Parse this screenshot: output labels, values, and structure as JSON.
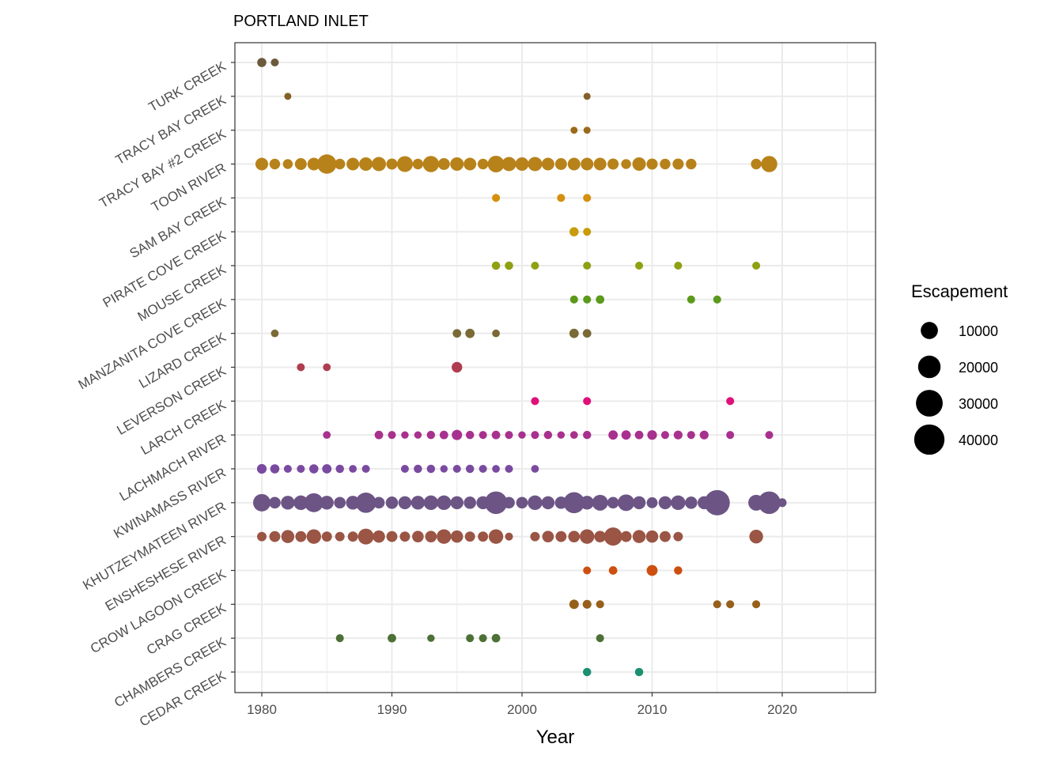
{
  "chart_data": {
    "type": "scatter",
    "title": "PORTLAND INLET",
    "xlabel": "Year",
    "ylabel": "",
    "xlim": [
      1978,
      2027
    ],
    "x_ticks": [
      1980,
      1990,
      2000,
      2010,
      2020
    ],
    "x_tick_labels": [
      "1980",
      "1990",
      "2000",
      "2010",
      "2020"
    ],
    "grid": true,
    "legend": {
      "title": "Escapement",
      "position": "right",
      "breaks": [
        10000,
        20000,
        30000,
        40000
      ],
      "labels": [
        "10000",
        "20000",
        "30000",
        "40000"
      ]
    },
    "series": [
      {
        "name": "TURK CREEK",
        "color": "#6b5a3c",
        "points": [
          [
            1980,
            2800
          ],
          [
            1981,
            1700
          ]
        ]
      },
      {
        "name": "TRACY BAY CREEK",
        "color": "#83602a",
        "points": [
          [
            1982,
            1000
          ],
          [
            2005,
            1000
          ]
        ]
      },
      {
        "name": "TRACY BAY #2 CREEK",
        "color": "#9c6a1c",
        "points": [
          [
            2004,
            1000
          ],
          [
            2005,
            1000
          ]
        ]
      },
      {
        "name": "TOON RIVER",
        "color": "#b8821a",
        "points": [
          [
            1980,
            6900
          ],
          [
            1981,
            4300
          ],
          [
            1982,
            3500
          ],
          [
            1983,
            5800
          ],
          [
            1984,
            6900
          ],
          [
            1985,
            18300
          ],
          [
            1986,
            4300
          ],
          [
            1987,
            6900
          ],
          [
            1988,
            8000
          ],
          [
            1989,
            9100
          ],
          [
            1990,
            4900
          ],
          [
            1991,
            11700
          ],
          [
            1992,
            4300
          ],
          [
            1993,
            12300
          ],
          [
            1994,
            5800
          ],
          [
            1995,
            8000
          ],
          [
            1996,
            6900
          ],
          [
            1997,
            4300
          ],
          [
            1998,
            13000
          ],
          [
            1999,
            9100
          ],
          [
            2000,
            8000
          ],
          [
            2001,
            9100
          ],
          [
            2002,
            6900
          ],
          [
            2003,
            5800
          ],
          [
            2004,
            6900
          ],
          [
            2005,
            6900
          ],
          [
            2006,
            6900
          ],
          [
            2007,
            4900
          ],
          [
            2008,
            3500
          ],
          [
            2009,
            8000
          ],
          [
            2010,
            4900
          ],
          [
            2011,
            4300
          ],
          [
            2012,
            4900
          ],
          [
            2013,
            4300
          ],
          [
            2018,
            4300
          ],
          [
            2019,
            12300
          ]
        ]
      },
      {
        "name": "SAM BAY CREEK",
        "color": "#d4900e",
        "points": [
          [
            1998,
            1700
          ],
          [
            2003,
            1700
          ],
          [
            2005,
            1700
          ]
        ]
      },
      {
        "name": "PIRATE COVE CREEK",
        "color": "#c89c0c",
        "points": [
          [
            2004,
            2800
          ],
          [
            2005,
            1700
          ]
        ]
      },
      {
        "name": "MOUSE CREEK",
        "color": "#8fa012",
        "points": [
          [
            1998,
            2000
          ],
          [
            1999,
            2000
          ],
          [
            2001,
            1700
          ],
          [
            2005,
            1700
          ],
          [
            2009,
            1700
          ],
          [
            2012,
            1700
          ],
          [
            2018,
            1700
          ]
        ]
      },
      {
        "name": "MANZANITA COVE CREEK",
        "color": "#5b9a1a",
        "points": [
          [
            2004,
            1700
          ],
          [
            2005,
            1700
          ],
          [
            2006,
            2200
          ],
          [
            2013,
            1700
          ],
          [
            2015,
            1700
          ]
        ]
      },
      {
        "name": "LIZARD CREEK",
        "color": "#7a6a36",
        "points": [
          [
            1981,
            1500
          ],
          [
            1995,
            2200
          ],
          [
            1996,
            3000
          ],
          [
            1998,
            1500
          ],
          [
            2004,
            3000
          ],
          [
            2005,
            2200
          ]
        ]
      },
      {
        "name": "LEVERSON CREEK",
        "color": "#b03c50",
        "points": [
          [
            1983,
            1700
          ],
          [
            1985,
            1500
          ],
          [
            1995,
            4300
          ]
        ]
      },
      {
        "name": "LARCH CREEK",
        "color": "#e0107a",
        "points": [
          [
            2001,
            1700
          ],
          [
            2005,
            1700
          ],
          [
            2016,
            1700
          ]
        ]
      },
      {
        "name": "LACHMACH RIVER",
        "color": "#a8308e",
        "points": [
          [
            1985,
            1500
          ],
          [
            1989,
            2200
          ],
          [
            1990,
            1700
          ],
          [
            1991,
            1300
          ],
          [
            1992,
            1300
          ],
          [
            1993,
            2000
          ],
          [
            1994,
            2200
          ],
          [
            1995,
            4000
          ],
          [
            1996,
            2000
          ],
          [
            1997,
            1700
          ],
          [
            1998,
            2200
          ],
          [
            1999,
            1700
          ],
          [
            2000,
            1300
          ],
          [
            2001,
            1700
          ],
          [
            2002,
            2000
          ],
          [
            2003,
            1300
          ],
          [
            2004,
            1500
          ],
          [
            2005,
            2000
          ],
          [
            2007,
            3000
          ],
          [
            2008,
            3000
          ],
          [
            2009,
            2200
          ],
          [
            2010,
            3300
          ],
          [
            2011,
            1700
          ],
          [
            2012,
            2500
          ],
          [
            2013,
            1700
          ],
          [
            2014,
            2500
          ],
          [
            2016,
            1700
          ],
          [
            2019,
            1700
          ]
        ]
      },
      {
        "name": "KWINAMASS RIVER",
        "color": "#7a4aa0",
        "points": [
          [
            1980,
            3300
          ],
          [
            1981,
            2800
          ],
          [
            1982,
            1700
          ],
          [
            1983,
            1700
          ],
          [
            1984,
            2800
          ],
          [
            1985,
            3000
          ],
          [
            1986,
            2000
          ],
          [
            1987,
            1500
          ],
          [
            1988,
            1700
          ],
          [
            1991,
            1700
          ],
          [
            1992,
            2000
          ],
          [
            1993,
            2000
          ],
          [
            1994,
            1300
          ],
          [
            1995,
            1700
          ],
          [
            1996,
            2000
          ],
          [
            1997,
            1700
          ],
          [
            1998,
            1500
          ],
          [
            1999,
            1700
          ],
          [
            2001,
            1500
          ]
        ]
      },
      {
        "name": "KHUTZEYMATEEN RIVER",
        "color": "#6c5585",
        "points": [
          [
            1980,
            14500
          ],
          [
            1981,
            5500
          ],
          [
            1982,
            8400
          ],
          [
            1983,
            9600
          ],
          [
            1984,
            17500
          ],
          [
            1985,
            8400
          ],
          [
            1986,
            5500
          ],
          [
            1987,
            8400
          ],
          [
            1988,
            20300
          ],
          [
            1989,
            5500
          ],
          [
            1990,
            6400
          ],
          [
            1991,
            7400
          ],
          [
            1992,
            8400
          ],
          [
            1993,
            9600
          ],
          [
            1994,
            9600
          ],
          [
            1995,
            7400
          ],
          [
            1996,
            6400
          ],
          [
            1997,
            7400
          ],
          [
            1998,
            25400
          ],
          [
            1999,
            5500
          ],
          [
            2000,
            5500
          ],
          [
            2001,
            9600
          ],
          [
            2002,
            7400
          ],
          [
            2003,
            6400
          ],
          [
            2004,
            21900
          ],
          [
            2005,
            8400
          ],
          [
            2006,
            11700
          ],
          [
            2007,
            5500
          ],
          [
            2008,
            13000
          ],
          [
            2009,
            7400
          ],
          [
            2010,
            4700
          ],
          [
            2011,
            7400
          ],
          [
            2012,
            9600
          ],
          [
            2013,
            6400
          ],
          [
            2014,
            7400
          ],
          [
            2015,
            32500
          ],
          [
            2018,
            11700
          ],
          [
            2019,
            25400
          ],
          [
            2020,
            2400
          ]
        ]
      },
      {
        "name": "ENSHESHESE RIVER",
        "color": "#9a5544",
        "points": [
          [
            1980,
            3100
          ],
          [
            1981,
            4700
          ],
          [
            1982,
            7400
          ],
          [
            1983,
            4700
          ],
          [
            1984,
            9600
          ],
          [
            1985,
            3900
          ],
          [
            1986,
            3100
          ],
          [
            1987,
            3900
          ],
          [
            1988,
            11700
          ],
          [
            1989,
            6400
          ],
          [
            1990,
            4700
          ],
          [
            1991,
            3900
          ],
          [
            1992,
            5500
          ],
          [
            1993,
            5500
          ],
          [
            1994,
            9600
          ],
          [
            1995,
            6400
          ],
          [
            1996,
            3900
          ],
          [
            1997,
            3900
          ],
          [
            1998,
            9600
          ],
          [
            1999,
            1700
          ],
          [
            2001,
            3100
          ],
          [
            2002,
            5500
          ],
          [
            2003,
            4700
          ],
          [
            2004,
            5500
          ],
          [
            2005,
            9600
          ],
          [
            2006,
            5500
          ],
          [
            2007,
            16000
          ],
          [
            2008,
            4700
          ],
          [
            2009,
            7400
          ],
          [
            2010,
            6400
          ],
          [
            2011,
            4700
          ],
          [
            2012,
            3100
          ],
          [
            2018,
            8400
          ]
        ]
      },
      {
        "name": "CROW LAGOON CREEK",
        "color": "#cc4f10",
        "points": [
          [
            2005,
            1700
          ],
          [
            2007,
            2200
          ],
          [
            2010,
            4700
          ],
          [
            2012,
            2000
          ]
        ]
      },
      {
        "name": "CRAG CREEK",
        "color": "#96601a",
        "points": [
          [
            2004,
            3100
          ],
          [
            2005,
            2400
          ],
          [
            2006,
            1700
          ],
          [
            2015,
            1700
          ],
          [
            2016,
            1700
          ],
          [
            2018,
            1700
          ]
        ]
      },
      {
        "name": "CHAMBERS CREEK",
        "color": "#4c7036",
        "points": [
          [
            1986,
            1700
          ],
          [
            1990,
            2200
          ],
          [
            1993,
            1300
          ],
          [
            1996,
            1700
          ],
          [
            1997,
            1700
          ],
          [
            1998,
            2200
          ],
          [
            2006,
            1700
          ]
        ]
      },
      {
        "name": "CEDAR CREEK",
        "color": "#1b9070",
        "points": [
          [
            2005,
            2000
          ],
          [
            2009,
            2000
          ]
        ]
      }
    ]
  }
}
